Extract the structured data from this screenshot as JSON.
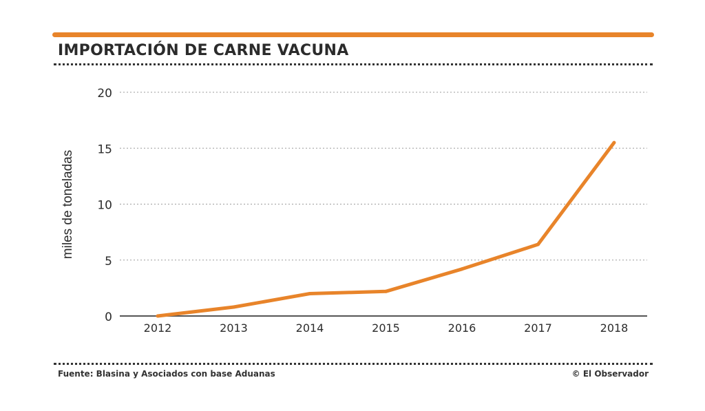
{
  "colors": {
    "accent": "#e8842a",
    "grid": "#9a9a9a",
    "axis": "#555555",
    "text": "#2b2b2b"
  },
  "footer": {
    "source": "Fuente: Blasina y Asociados con base Aduanas",
    "credit": "© El Observador"
  },
  "chart_data": {
    "type": "line",
    "title": "IMPORTACIÓN DE CARNE VACUNA",
    "xlabel": "",
    "ylabel": "miles de toneladas",
    "categories": [
      "2012",
      "2013",
      "2014",
      "2015",
      "2016",
      "2017",
      "2018"
    ],
    "series": [
      {
        "name": "Importación de carne vacuna",
        "values": [
          0,
          0.8,
          2.0,
          2.2,
          4.2,
          6.4,
          15.5
        ]
      }
    ],
    "yticks": [
      0,
      5,
      10,
      15,
      20
    ],
    "ylim": [
      0,
      20
    ],
    "grid": true
  }
}
